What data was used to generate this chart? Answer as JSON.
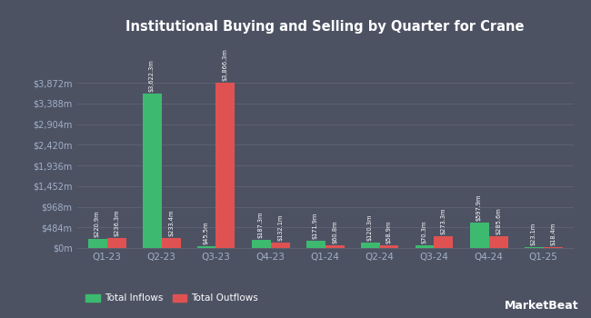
{
  "title": "Institutional Buying and Selling by Quarter for Crane",
  "quarters": [
    "Q1-23",
    "Q2-23",
    "Q3-23",
    "Q4-23",
    "Q1-24",
    "Q2-24",
    "Q3-24",
    "Q4-24",
    "Q1-25"
  ],
  "inflows": [
    220.9,
    3622.3,
    45.5,
    187.3,
    171.9,
    120.3,
    70.3,
    597.9,
    23.1
  ],
  "outflows": [
    236.3,
    233.4,
    3866.3,
    132.1,
    60.8,
    58.9,
    273.3,
    285.6,
    18.4
  ],
  "inflow_labels": [
    "$220.9m",
    "$3,622.3m",
    "$45.5m",
    "$187.3m",
    "$171.9m",
    "$120.3m",
    "$70.3m",
    "$597.9m",
    "$23.1m"
  ],
  "outflow_labels": [
    "$236.3m",
    "$233.4m",
    "$3,866.3m",
    "$132.1m",
    "$60.8m",
    "$58.9m",
    "$273.3m",
    "$285.6m",
    "$18.4m"
  ],
  "inflow_color": "#3dba6f",
  "outflow_color": "#e05252",
  "background_color": "#4d5263",
  "plot_bg_color": "#4d5263",
  "grid_color": "#5c6070",
  "text_color": "#ffffff",
  "xtick_color": "#a0b0c8",
  "ytick_color": "#a0b0c8",
  "bar_width": 0.35,
  "ylim": [
    0,
    4840
  ],
  "yticks": [
    0,
    484,
    968,
    1452,
    1936,
    2420,
    2904,
    3388,
    3872
  ],
  "ytick_labels": [
    "$0m",
    "$484m",
    "$968m",
    "$1,452m",
    "$1,936m",
    "$2,420m",
    "$2,904m",
    "$3,388m",
    "$3,872m"
  ],
  "legend_labels": [
    "Total Inflows",
    "Total Outflows"
  ],
  "watermark": "MarketBeat"
}
